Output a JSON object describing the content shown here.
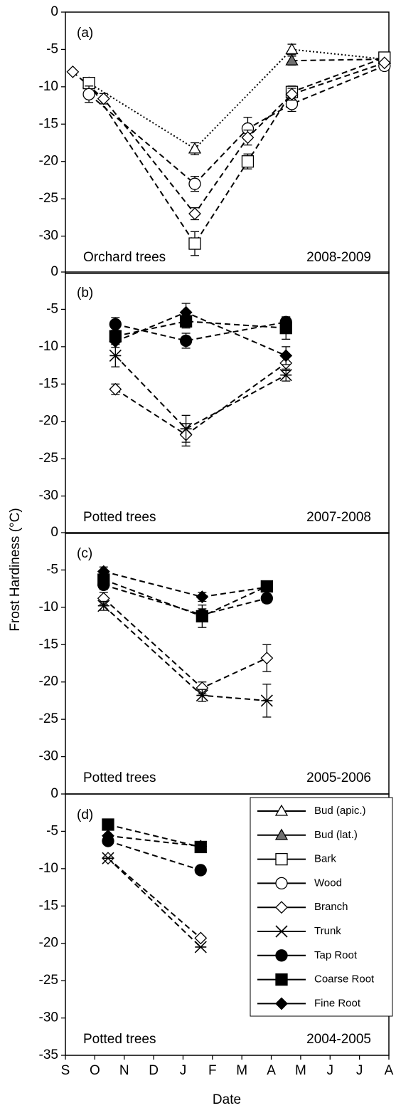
{
  "y_label": "Frost Hardiness (°C)",
  "x_axis": {
    "label": "Date",
    "xlim": [
      0,
      11
    ],
    "xticks": [
      {
        "value": 0,
        "label": "S"
      },
      {
        "value": 1,
        "label": "O"
      },
      {
        "value": 2,
        "label": "N"
      },
      {
        "value": 3,
        "label": "D"
      },
      {
        "value": 4,
        "label": "J"
      },
      {
        "value": 5,
        "label": "F"
      },
      {
        "value": 6,
        "label": "M"
      },
      {
        "value": 7,
        "label": "A"
      },
      {
        "value": 8,
        "label": "M"
      },
      {
        "value": 9,
        "label": "J"
      },
      {
        "value": 10,
        "label": "J"
      },
      {
        "value": 11,
        "label": "A"
      }
    ]
  },
  "legend": [
    {
      "name": "Bud (apic.)",
      "marker": "triangle",
      "fill": "#ffffff",
      "dash": "2,3"
    },
    {
      "name": "Bud (lat.)",
      "marker": "triangle",
      "fill": "#707070",
      "dash": "8,5"
    },
    {
      "name": "Bark",
      "marker": "square",
      "fill": "#ffffff",
      "dash": "8,5"
    },
    {
      "name": "Wood",
      "marker": "circle",
      "fill": "#ffffff",
      "dash": "8,5"
    },
    {
      "name": "Branch",
      "marker": "diamond",
      "fill": "#ffffff",
      "dash": "8,5"
    },
    {
      "name": "Trunk",
      "marker": "star",
      "fill": "#000000",
      "dash": "8,5"
    },
    {
      "name": "Tap Root",
      "marker": "circle",
      "fill": "#000000",
      "dash": "8,5"
    },
    {
      "name": "Coarse Root",
      "marker": "square",
      "fill": "#000000",
      "dash": "8,5"
    },
    {
      "name": "Fine Root",
      "marker": "diamond",
      "fill": "#000000",
      "dash": "8,5"
    }
  ],
  "chart_data": [
    {
      "type": "line",
      "panel_label": "(a)",
      "annotation_left": "Orchard trees",
      "annotation_right": "2008-2009",
      "ylim": [
        -35,
        0
      ],
      "yticks": [
        0,
        -5,
        -10,
        -15,
        -20,
        -25,
        -30
      ],
      "series": [
        {
          "name": "Bud (apic.)",
          "x": [
            0.8,
            4.4,
            7.7,
            10.85
          ],
          "values": [
            -9.5,
            -18.3,
            -5,
            -6.3
          ],
          "errors": [
            null,
            0.8,
            0.7,
            null
          ]
        },
        {
          "name": "Bud (lat.)",
          "x": [
            7.7,
            10.85
          ],
          "values": [
            -6.5,
            -6.3
          ],
          "errors": [
            0.6,
            null
          ]
        },
        {
          "name": "Bark",
          "x": [
            0.8,
            4.4,
            6.2,
            7.7,
            10.85
          ],
          "values": [
            -9.5,
            -31,
            -20,
            -10.7,
            -6.1
          ],
          "errors": [
            null,
            1.6,
            1,
            0.8,
            null
          ]
        },
        {
          "name": "Wood",
          "x": [
            0.8,
            4.4,
            6.2,
            7.7,
            10.85
          ],
          "values": [
            -11,
            -23,
            -15.6,
            -12.3,
            -7.2
          ],
          "errors": [
            1.1,
            1,
            1.5,
            1,
            null
          ]
        },
        {
          "name": "Branch",
          "x": [
            0.25,
            1.3,
            4.4,
            6.2,
            7.7,
            10.85
          ],
          "values": [
            -8,
            -11.6,
            -27,
            -16.8,
            -11,
            -6.8
          ],
          "errors": [
            null,
            0.7,
            0.8,
            1,
            0.8,
            null
          ]
        }
      ]
    },
    {
      "type": "line",
      "panel_label": "(b)",
      "annotation_left": "Potted trees",
      "annotation_right": "2007-2008",
      "ylim": [
        -35,
        0
      ],
      "yticks": [
        0,
        -5,
        -10,
        -15,
        -20,
        -25,
        -30
      ],
      "series": [
        {
          "name": "Branch",
          "x": [
            1.7,
            4.1,
            7.5
          ],
          "values": [
            -15.7,
            -21.8,
            -12.2
          ],
          "errors": [
            0.7,
            1.5,
            1
          ]
        },
        {
          "name": "Trunk",
          "x": [
            1.7,
            4.1,
            7.5
          ],
          "values": [
            -11.2,
            -21,
            -13.8
          ],
          "errors": [
            1.5,
            1.8,
            0.8
          ]
        },
        {
          "name": "Tap Root",
          "x": [
            1.7,
            4.1,
            7.5
          ],
          "values": [
            -7,
            -9.2,
            -6.7
          ],
          "errors": [
            0.9,
            1,
            0.6
          ]
        },
        {
          "name": "Coarse Root",
          "x": [
            1.7,
            4.1,
            7.5
          ],
          "values": [
            -8.6,
            -6.6,
            -7.5
          ],
          "errors": [
            0.8,
            0.9,
            1.5
          ]
        },
        {
          "name": "Fine Root",
          "x": [
            1.7,
            4.1,
            7.5
          ],
          "values": [
            -9.3,
            -5.4,
            -11.2
          ],
          "errors": [
            0.8,
            1.2,
            1.2
          ]
        }
      ]
    },
    {
      "type": "line",
      "panel_label": "(c)",
      "annotation_left": "Potted trees",
      "annotation_right": "2005-2006",
      "ylim": [
        -35,
        0
      ],
      "yticks": [
        0,
        -5,
        -10,
        -15,
        -20,
        -25,
        -30
      ],
      "series": [
        {
          "name": "Branch",
          "x": [
            1.3,
            4.65,
            6.85
          ],
          "values": [
            -8.8,
            -20.8,
            -16.8
          ],
          "errors": [
            0.8,
            0.8,
            1.8
          ]
        },
        {
          "name": "Trunk",
          "x": [
            1.3,
            4.65,
            6.85
          ],
          "values": [
            -9.8,
            -21.8,
            -22.5
          ],
          "errors": [
            0.6,
            0.8,
            2.2
          ]
        },
        {
          "name": "Tap Root",
          "x": [
            1.3,
            4.65,
            6.85
          ],
          "values": [
            -7,
            -11,
            -8.8
          ],
          "errors": [
            0.6,
            0.8,
            0.6
          ]
        },
        {
          "name": "Coarse Root",
          "x": [
            1.3,
            4.65,
            6.85
          ],
          "values": [
            -6.3,
            -11.2,
            -7.2
          ],
          "errors": [
            0.6,
            1.5,
            0.5
          ]
        },
        {
          "name": "Fine Root",
          "x": [
            1.3,
            4.65,
            6.85
          ],
          "values": [
            -5.2,
            -8.6,
            -7.3
          ],
          "errors": [
            0.6,
            0.6,
            0.5
          ]
        }
      ]
    },
    {
      "type": "line",
      "panel_label": "(d)",
      "annotation_left": "Potted trees",
      "annotation_right": "2004-2005",
      "ylim": [
        -35,
        0
      ],
      "yticks": [
        0,
        -5,
        -10,
        -15,
        -20,
        -25,
        -30,
        -35
      ],
      "series": [
        {
          "name": "Branch",
          "x": [
            1.45,
            4.6
          ],
          "values": [
            -8.6,
            -19.3
          ],
          "errors": [
            null,
            null
          ]
        },
        {
          "name": "Trunk",
          "x": [
            1.45,
            4.6
          ],
          "values": [
            -8.6,
            -20.5
          ],
          "errors": [
            null,
            null
          ]
        },
        {
          "name": "Tap Root",
          "x": [
            1.45,
            4.6
          ],
          "values": [
            -6.3,
            -10.2
          ],
          "errors": [
            null,
            null
          ]
        },
        {
          "name": "Coarse Root",
          "x": [
            1.45,
            4.6
          ],
          "values": [
            -4.1,
            -7.1
          ],
          "errors": [
            null,
            null
          ]
        },
        {
          "name": "Fine Root",
          "x": [
            1.45,
            4.6
          ],
          "values": [
            -5.6,
            -7
          ],
          "errors": [
            null,
            null
          ]
        }
      ]
    }
  ]
}
